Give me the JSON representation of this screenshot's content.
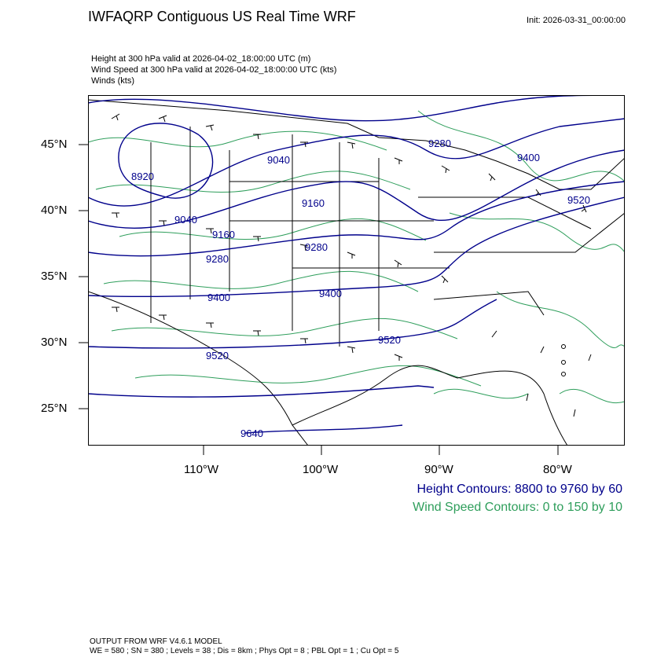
{
  "header": {
    "title": "IWFAQRP Contiguous US Real Time WRF",
    "init": "Init: 2026-03-31_00:00:00"
  },
  "fields": [
    "Height at 300 hPa valid at 2026-04-02_18:00:00 UTC   (m)",
    "Wind Speed at 300 hPa valid at 2026-04-02_18:00:00 UTC   (kts)",
    "Winds   (kts)"
  ],
  "map": {
    "lat_labels": [
      "45°N",
      "40°N",
      "35°N",
      "30°N",
      "25°N"
    ],
    "lon_labels": [
      "110°W",
      "100°W",
      "90°W",
      "80°W"
    ],
    "height_contour_labels": [
      "8920",
      "9040",
      "9280",
      "9400",
      "9160",
      "9040",
      "9160",
      "9280",
      "9280",
      "9400",
      "9400",
      "9520",
      "9520",
      "9520",
      "9640"
    ],
    "colors": {
      "height_contour": "#00008b",
      "wind_contour": "#2e9e5b",
      "boundaries": "#000000"
    }
  },
  "legend": {
    "height": "Height Contours: 8800 to 9760 by 60",
    "wind": "Wind Speed Contours: 0 to 150 by 10"
  },
  "footer": {
    "line1": "OUTPUT FROM WRF V4.6.1 MODEL",
    "line2": "WE = 580 ; SN = 380 ; Levels = 38 ; Dis = 8km ; Phys Opt = 8 ; PBL Opt = 1 ; Cu Opt = 5"
  }
}
